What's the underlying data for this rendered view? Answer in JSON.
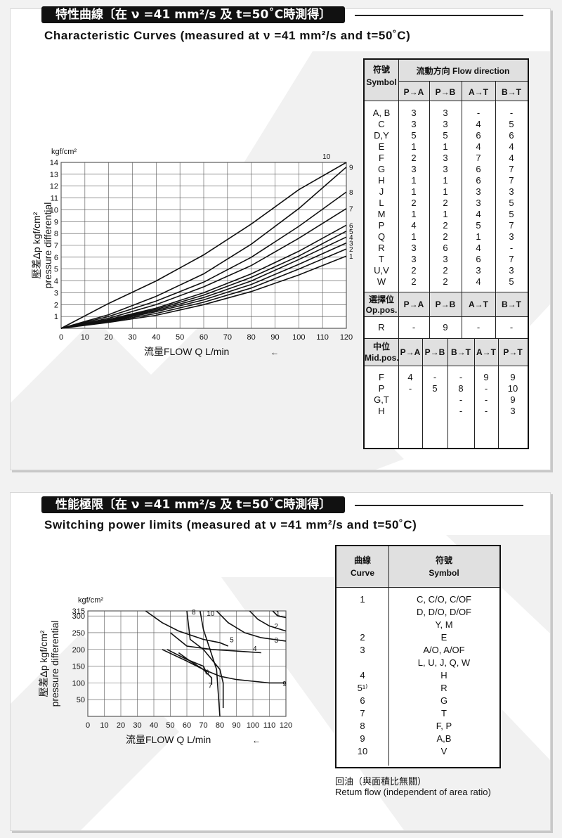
{
  "sections": {
    "characteristic": {
      "banner": "特性曲線〔在 ν =41 mm²/s 及 t=50˚C時測得〕",
      "subtitle": "Characteristic Curves  (measured at ν =41 mm²/s and t=50˚C)"
    },
    "switching": {
      "banner": "性能極限〔在 ν =41 mm²/s 及 t=50˚C時測得〕",
      "subtitle": "Switching power limits  (measured at ν =41 mm²/s and t=50˚C)"
    }
  },
  "chart_data": [
    {
      "type": "line",
      "title": "Characteristic Curves",
      "xlabel": "流量FLOW  Q  L/min",
      "ylabel": "壓差Δp kgf/cm²",
      "ylabel2": "pressure differential",
      "yunit": "kgf/cm²",
      "xlim": [
        0,
        120
      ],
      "ylim": [
        0,
        14
      ],
      "xticks": [
        0,
        10,
        20,
        30,
        40,
        50,
        60,
        70,
        80,
        90,
        100,
        110,
        120
      ],
      "yticks": [
        1,
        2,
        3,
        4,
        5,
        6,
        7,
        8,
        9,
        10,
        11,
        12,
        13,
        14
      ],
      "grid": true,
      "x": [
        0,
        20,
        40,
        60,
        80,
        100,
        120
      ],
      "series": [
        {
          "name": "1",
          "values": [
            0,
            0.5,
            1.1,
            2.0,
            3.1,
            4.5,
            6.1
          ]
        },
        {
          "name": "2",
          "values": [
            0,
            0.55,
            1.25,
            2.2,
            3.4,
            5.0,
            6.7
          ]
        },
        {
          "name": "3",
          "values": [
            0,
            0.6,
            1.4,
            2.4,
            3.7,
            5.4,
            7.2
          ]
        },
        {
          "name": "4",
          "values": [
            0,
            0.65,
            1.5,
            2.6,
            4.0,
            5.8,
            7.7
          ]
        },
        {
          "name": "5",
          "values": [
            0,
            0.7,
            1.6,
            2.8,
            4.3,
            6.1,
            8.2
          ]
        },
        {
          "name": "6",
          "values": [
            0,
            0.75,
            1.7,
            3.0,
            4.6,
            6.5,
            8.7
          ]
        },
        {
          "name": "7",
          "values": [
            0,
            0.85,
            2.0,
            3.5,
            5.3,
            7.6,
            10.1
          ]
        },
        {
          "name": "8",
          "values": [
            0,
            1.0,
            2.3,
            3.9,
            6.0,
            8.6,
            11.5
          ]
        },
        {
          "name": "9",
          "values": [
            0,
            1.15,
            2.7,
            4.6,
            7.1,
            10.1,
            13.6
          ]
        },
        {
          "name": "10",
          "values": [
            0,
            2.1,
            4.0,
            6.2,
            8.8,
            11.7,
            14.0
          ]
        }
      ]
    },
    {
      "type": "line",
      "title": "Switching power limits",
      "xlabel": "流量FLOW  Q  L/min",
      "ylabel": "壓差Δp kgf/cm²",
      "ylabel2": "pressure differential",
      "yunit": "kgf/cm²",
      "xlim": [
        0,
        120
      ],
      "ylim": [
        0,
        315
      ],
      "xticks": [
        0,
        10,
        20,
        30,
        40,
        50,
        60,
        70,
        80,
        90,
        100,
        110,
        120
      ],
      "yticks": [
        50,
        100,
        150,
        200,
        250,
        300,
        315
      ],
      "grid": true,
      "series": [
        {
          "name": "1",
          "points": [
            [
              112,
              315
            ],
            [
              115,
              300
            ],
            [
              120,
              295
            ]
          ]
        },
        {
          "name": "2",
          "points": [
            [
              98,
              315
            ],
            [
              103,
              290
            ],
            [
              110,
              270
            ],
            [
              120,
              255
            ]
          ]
        },
        {
          "name": "3",
          "points": [
            [
              78,
              315
            ],
            [
              85,
              280
            ],
            [
              95,
              250
            ],
            [
              105,
              235
            ],
            [
              120,
              225
            ]
          ]
        },
        {
          "name": "4",
          "points": [
            [
              50,
              250
            ],
            [
              60,
              210
            ],
            [
              75,
              200
            ],
            [
              90,
              195
            ],
            [
              105,
              190
            ]
          ]
        },
        {
          "name": "5",
          "points": [
            [
              35,
              315
            ],
            [
              45,
              280
            ],
            [
              55,
              255
            ],
            [
              70,
              230
            ],
            [
              80,
              220
            ],
            [
              85,
              210
            ]
          ]
        },
        {
          "name": "6",
          "points": [
            [
              48,
              200
            ],
            [
              60,
              170
            ],
            [
              70,
              150
            ],
            [
              72,
              130
            ]
          ]
        },
        {
          "name": "7",
          "points": [
            [
              55,
              190
            ],
            [
              62,
              165
            ],
            [
              70,
              140
            ],
            [
              75,
              115
            ],
            [
              75,
              95
            ]
          ]
        },
        {
          "name": "8",
          "points": [
            [
              60,
              315
            ],
            [
              62,
              230
            ],
            [
              70,
              200
            ],
            [
              75,
              170
            ],
            [
              80,
              140
            ],
            [
              82,
              100
            ],
            [
              82,
              50
            ],
            [
              82,
              25
            ]
          ]
        },
        {
          "name": "9",
          "points": [
            [
              45,
              200
            ],
            [
              60,
              165
            ],
            [
              70,
              140
            ],
            [
              80,
              120
            ],
            [
              90,
              110
            ],
            [
              100,
              105
            ],
            [
              110,
              100
            ],
            [
              120,
              100
            ]
          ]
        },
        {
          "name": "10",
          "points": [
            [
              68,
              315
            ],
            [
              70,
              260
            ],
            [
              72,
              230
            ],
            [
              74,
              200
            ],
            [
              76,
              170
            ],
            [
              78,
              140
            ],
            [
              80,
              0
            ]
          ]
        }
      ]
    }
  ],
  "flow_table": {
    "symbol_header": "符號",
    "symbol_header_en": "Symbol",
    "flow_header": "流動方向",
    "flow_header_en": "Flow direction",
    "columns": [
      "P→A",
      "P→B",
      "A→T",
      "B→T"
    ],
    "rows": [
      {
        "symbol": "A, B",
        "v": [
          "3",
          "3",
          "-",
          "-"
        ]
      },
      {
        "symbol": "C",
        "v": [
          "3",
          "3",
          "4",
          "5"
        ]
      },
      {
        "symbol": "D,Y",
        "v": [
          "5",
          "5",
          "6",
          "6"
        ]
      },
      {
        "symbol": "E",
        "v": [
          "1",
          "1",
          "4",
          "4"
        ]
      },
      {
        "symbol": "F",
        "v": [
          "2",
          "3",
          "7",
          "4"
        ]
      },
      {
        "symbol": "G",
        "v": [
          "3",
          "3",
          "6",
          "7"
        ]
      },
      {
        "symbol": "H",
        "v": [
          "1",
          "1",
          "6",
          "7"
        ]
      },
      {
        "symbol": "J",
        "v": [
          "1",
          "1",
          "3",
          "3"
        ]
      },
      {
        "symbol": "L",
        "v": [
          "2",
          "2",
          "3",
          "5"
        ]
      },
      {
        "symbol": "M",
        "v": [
          "1",
          "1",
          "4",
          "5"
        ]
      },
      {
        "symbol": "P",
        "v": [
          "4",
          "2",
          "5",
          "7"
        ]
      },
      {
        "symbol": "Q",
        "v": [
          "1",
          "2",
          "1",
          "3"
        ]
      },
      {
        "symbol": "R",
        "v": [
          "3",
          "6",
          "4",
          "-"
        ]
      },
      {
        "symbol": "T",
        "v": [
          "3",
          "3",
          "6",
          "7"
        ]
      },
      {
        "symbol": "U,V",
        "v": [
          "2",
          "2",
          "3",
          "3"
        ]
      },
      {
        "symbol": "W",
        "v": [
          "2",
          "2",
          "4",
          "5"
        ]
      }
    ],
    "op_header": "選擇位",
    "op_header_en": "Op.pos.",
    "op_columns": [
      "P→A",
      "P→B",
      "A→T",
      "B→T"
    ],
    "op_rows": [
      {
        "symbol": "R",
        "v": [
          "-",
          "9",
          "-",
          "-"
        ]
      }
    ],
    "mid_header": "中位",
    "mid_header_en": "Mid.pos.",
    "mid_columns": [
      "P→A",
      "P→B",
      "B→T",
      "A→T",
      "P→T"
    ],
    "mid_rows": [
      {
        "symbol": "F",
        "v": [
          "4",
          "-",
          "-",
          "9",
          "9"
        ]
      },
      {
        "symbol": "P",
        "v": [
          "-",
          "5",
          "8",
          "-",
          "10"
        ]
      },
      {
        "symbol": "G,T",
        "v": [
          "",
          "",
          "-",
          "-",
          "9"
        ]
      },
      {
        "symbol": "H",
        "v": [
          "",
          "",
          "-",
          "-",
          "3"
        ]
      }
    ]
  },
  "curve_table": {
    "curve_header": "曲線",
    "curve_header_en": "Curve",
    "symbol_header": "符號",
    "symbol_header_en": "Symbol",
    "rows": [
      {
        "curve": "1",
        "symbol": "C, C/O, C/OF"
      },
      {
        "curve": "",
        "symbol": "D, D/O, D/OF"
      },
      {
        "curve": "",
        "symbol": "Y, M"
      },
      {
        "curve": "2",
        "symbol": "E"
      },
      {
        "curve": "3",
        "symbol": "A/O, A/OF"
      },
      {
        "curve": "",
        "symbol": "L, U, J, Q, W"
      },
      {
        "curve": "4",
        "symbol": "H"
      },
      {
        "curve": "5¹⁾",
        "symbol": "R"
      },
      {
        "curve": "6",
        "symbol": "G"
      },
      {
        "curve": "7",
        "symbol": "T"
      },
      {
        "curve": "8",
        "symbol": "F, P"
      },
      {
        "curve": "9",
        "symbol": "A,B"
      },
      {
        "curve": "10",
        "symbol": "V"
      }
    ],
    "note_zh": "回油（與面積比無關）",
    "note_en": "Retum flow (independent of area ratio)"
  }
}
